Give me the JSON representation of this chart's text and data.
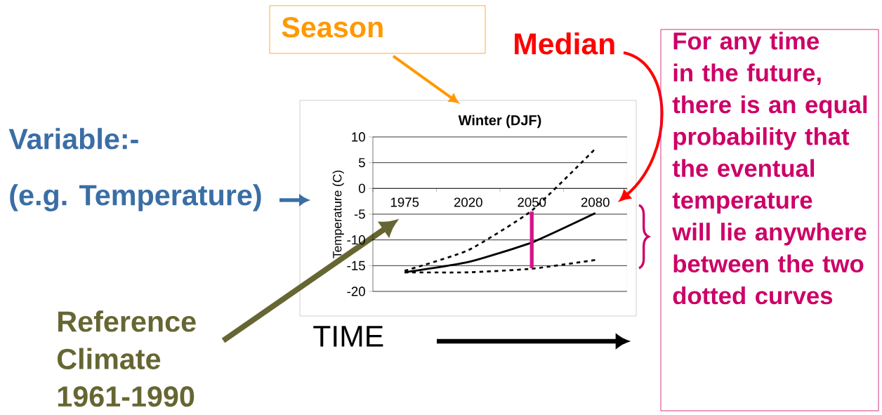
{
  "chart_data": {
    "type": "line",
    "title": "Winter (DJF)",
    "ylabel": "Temperature (C)",
    "categories": [
      "1975",
      "2020",
      "2050",
      "2080"
    ],
    "series": [
      {
        "color": "#000000",
        "values": [
          -16,
          -12,
          -4.3,
          7.7
        ],
        "line_style": "dashed"
      },
      {
        "color": "#000000",
        "values": [
          -16.3,
          -14.3,
          -10.5,
          -4.8
        ],
        "line_style": "solid"
      },
      {
        "color": "#000000",
        "values": [
          -16.3,
          -16.3,
          -15.6,
          -13.9
        ],
        "line_style": "dashed"
      },
      {
        "type": "bar",
        "color": "#D4148C",
        "values": [
          null,
          null,
          11,
          null
        ],
        "base": [
          null,
          null,
          -15.5,
          null
        ]
      }
    ],
    "ylim": [
      -20,
      10
    ],
    "yticks": [
      -20,
      -15,
      -10,
      -5,
      0,
      5,
      10
    ],
    "grid": "y",
    "marker": "none",
    "annotations": [
      "Season",
      "Median",
      "For any time in the future, there is an equal probability that the eventual temperature will lie anywhere between the two dotted curves",
      "Variable:-",
      "(e.g. Temperature)",
      "Reference Climate 1961-1990",
      "TIME"
    ]
  }
}
